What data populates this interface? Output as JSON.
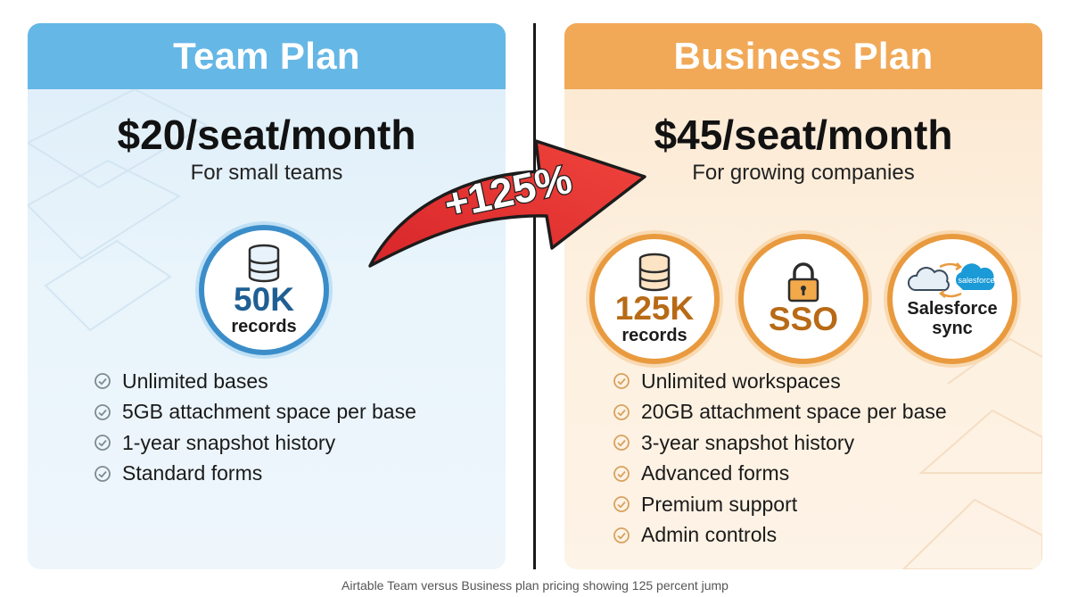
{
  "team": {
    "title": "Team Plan",
    "price": "$20/seat/month",
    "tagline": "For small teams",
    "badge": {
      "value": "50K",
      "unit": "records",
      "icon": "database-icon"
    },
    "features": [
      "Unlimited bases",
      "5GB attachment space per base",
      "1-year snapshot history",
      "Standard forms"
    ],
    "accent": "#65b7e6"
  },
  "business": {
    "title": "Business Plan",
    "price": "$45/seat/month",
    "tagline": "For growing companies",
    "badges": [
      {
        "value": "125K",
        "unit": "records",
        "icon": "database-icon"
      },
      {
        "value": "SSO",
        "icon": "lock-icon"
      },
      {
        "label_line1": "Salesforce",
        "label_line2": "sync",
        "logo_text": "salesforce",
        "icon": "cloud-sync-icon"
      }
    ],
    "features": [
      "Unlimited workspaces",
      "20GB attachment space per base",
      "3-year snapshot history",
      "Advanced forms",
      "Premium support",
      "Admin controls"
    ],
    "accent": "#f1a957"
  },
  "increase_label": "+125%",
  "caption": "Airtable Team versus Business plan pricing showing 125 percent jump"
}
